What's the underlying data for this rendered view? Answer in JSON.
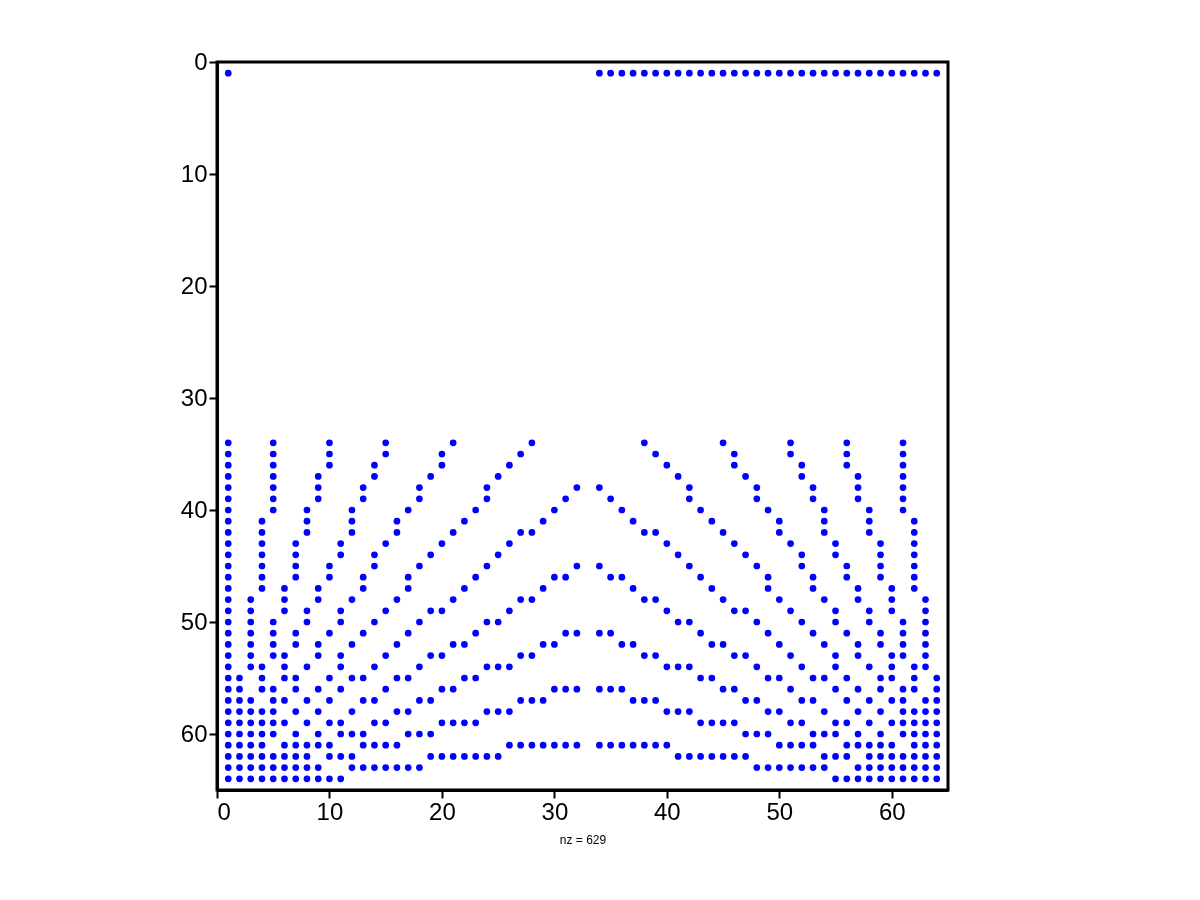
{
  "chart_data": {
    "type": "scatter",
    "xlabel": "nz = 629",
    "xlim": [
      0,
      65
    ],
    "ylim": [
      65,
      0
    ],
    "xticks": [
      0,
      10,
      20,
      30,
      40,
      50,
      60
    ],
    "yticks": [
      0,
      10,
      20,
      30,
      40,
      50,
      60
    ],
    "grid": false,
    "marker": "circle",
    "series": [
      {
        "color": "#0000ff",
        "x": [
          1,
          34,
          35,
          36,
          37,
          38,
          39,
          40,
          41,
          42,
          43,
          44,
          45,
          46,
          47,
          48,
          49,
          50,
          51,
          52,
          53,
          54,
          55,
          56,
          57,
          58,
          59,
          60,
          61,
          62,
          63,
          64
        ],
        "values": [
          1,
          1,
          1,
          1,
          1,
          1,
          1,
          1,
          1,
          1,
          1,
          1,
          1,
          1,
          1,
          1,
          1,
          1,
          1,
          1,
          1,
          1,
          1,
          1,
          1,
          1,
          1,
          1,
          1,
          1,
          1,
          1
        ]
      },
      {
        "color": "#0000ff",
        "x": [
          1,
          5,
          10,
          15,
          21,
          28,
          38,
          45,
          51,
          56,
          61
        ],
        "values": [
          34,
          34,
          34,
          34,
          34,
          34,
          34,
          34,
          34,
          34,
          34
        ]
      },
      {
        "color": "#0000ff",
        "x": [
          1,
          5,
          10,
          15,
          20,
          27,
          39,
          46,
          51,
          56,
          61
        ],
        "values": [
          35,
          35,
          35,
          35,
          35,
          35,
          35,
          35,
          35,
          35,
          35
        ]
      },
      {
        "color": "#0000ff",
        "x": [
          1,
          5,
          10,
          14,
          20,
          26,
          40,
          46,
          52,
          56,
          61
        ],
        "values": [
          36,
          36,
          36,
          36,
          36,
          36,
          36,
          36,
          36,
          36,
          36
        ]
      },
      {
        "color": "#0000ff",
        "x": [
          1,
          5,
          9,
          14,
          19,
          25,
          41,
          47,
          52,
          57,
          61
        ],
        "values": [
          37,
          37,
          37,
          37,
          37,
          37,
          37,
          37,
          37,
          37,
          37
        ]
      },
      {
        "color": "#0000ff",
        "x": [
          1,
          5,
          9,
          13,
          18,
          24,
          32,
          34,
          42,
          48,
          53,
          57,
          61
        ],
        "values": [
          38,
          38,
          38,
          38,
          38,
          38,
          38,
          38,
          38,
          38,
          38,
          38,
          38
        ]
      },
      {
        "color": "#0000ff",
        "x": [
          1,
          5,
          9,
          13,
          18,
          24,
          31,
          35,
          42,
          48,
          53,
          57,
          61
        ],
        "values": [
          39,
          39,
          39,
          39,
          39,
          39,
          39,
          39,
          39,
          39,
          39,
          39,
          39
        ]
      },
      {
        "color": "#0000ff",
        "x": [
          1,
          5,
          8,
          12,
          17,
          23,
          30,
          36,
          43,
          49,
          54,
          58,
          61
        ],
        "values": [
          40,
          40,
          40,
          40,
          40,
          40,
          40,
          40,
          40,
          40,
          40,
          40,
          40
        ]
      },
      {
        "color": "#0000ff",
        "x": [
          1,
          4,
          8,
          12,
          16,
          22,
          29,
          37,
          44,
          50,
          54,
          58,
          62
        ],
        "values": [
          41,
          41,
          41,
          41,
          41,
          41,
          41,
          41,
          41,
          41,
          41,
          41,
          41
        ]
      },
      {
        "color": "#0000ff",
        "x": [
          1,
          4,
          8,
          12,
          16,
          21,
          27,
          28,
          38,
          39,
          45,
          50,
          54,
          58,
          62
        ],
        "values": [
          42,
          42,
          42,
          42,
          42,
          42,
          42,
          42,
          42,
          42,
          42,
          42,
          42,
          42,
          42
        ]
      },
      {
        "color": "#0000ff",
        "x": [
          1,
          4,
          7,
          11,
          15,
          20,
          26,
          40,
          46,
          51,
          55,
          59,
          62
        ],
        "values": [
          43,
          43,
          43,
          43,
          43,
          43,
          43,
          43,
          43,
          43,
          43,
          43,
          43
        ]
      },
      {
        "color": "#0000ff",
        "x": [
          1,
          4,
          7,
          11,
          14,
          19,
          25,
          41,
          47,
          52,
          55,
          59,
          62
        ],
        "values": [
          44,
          44,
          44,
          44,
          44,
          44,
          44,
          44,
          44,
          44,
          44,
          44,
          44
        ]
      },
      {
        "color": "#0000ff",
        "x": [
          1,
          4,
          7,
          10,
          14,
          18,
          24,
          32,
          34,
          42,
          48,
          52,
          56,
          59,
          62
        ],
        "values": [
          45,
          45,
          45,
          45,
          45,
          45,
          45,
          45,
          45,
          45,
          45,
          45,
          45,
          45,
          45
        ]
      },
      {
        "color": "#0000ff",
        "x": [
          1,
          4,
          7,
          10,
          13,
          17,
          23,
          30,
          31,
          35,
          36,
          43,
          49,
          53,
          56,
          59,
          62
        ],
        "values": [
          46,
          46,
          46,
          46,
          46,
          46,
          46,
          46,
          46,
          46,
          46,
          46,
          46,
          46,
          46,
          46,
          46
        ]
      },
      {
        "color": "#0000ff",
        "x": [
          1,
          4,
          6,
          9,
          13,
          17,
          22,
          29,
          37,
          44,
          49,
          53,
          57,
          60,
          62
        ],
        "values": [
          47,
          47,
          47,
          47,
          47,
          47,
          47,
          47,
          47,
          47,
          47,
          47,
          47,
          47,
          47
        ]
      },
      {
        "color": "#0000ff",
        "x": [
          1,
          3,
          6,
          9,
          12,
          16,
          21,
          27,
          28,
          38,
          39,
          45,
          50,
          54,
          57,
          60,
          63
        ],
        "values": [
          48,
          48,
          48,
          48,
          48,
          48,
          48,
          48,
          48,
          48,
          48,
          48,
          48,
          48,
          48,
          48,
          48
        ]
      },
      {
        "color": "#0000ff",
        "x": [
          1,
          3,
          6,
          8,
          11,
          15,
          19,
          20,
          26,
          40,
          46,
          47,
          51,
          55,
          58,
          60,
          63
        ],
        "values": [
          49,
          49,
          49,
          49,
          49,
          49,
          49,
          49,
          49,
          49,
          49,
          49,
          49,
          49,
          49,
          49,
          49
        ]
      },
      {
        "color": "#0000ff",
        "x": [
          1,
          3,
          5,
          8,
          11,
          14,
          18,
          24,
          25,
          41,
          42,
          48,
          52,
          55,
          58,
          61,
          63
        ],
        "values": [
          50,
          50,
          50,
          50,
          50,
          50,
          50,
          50,
          50,
          50,
          50,
          50,
          50,
          50,
          50,
          50,
          50
        ]
      },
      {
        "color": "#0000ff",
        "x": [
          1,
          3,
          5,
          7,
          10,
          13,
          17,
          23,
          31,
          32,
          34,
          35,
          43,
          49,
          53,
          56,
          59,
          61,
          63
        ],
        "values": [
          51,
          51,
          51,
          51,
          51,
          51,
          51,
          51,
          51,
          51,
          51,
          51,
          51,
          51,
          51,
          51,
          51,
          51,
          51
        ]
      },
      {
        "color": "#0000ff",
        "x": [
          1,
          3,
          5,
          7,
          9,
          12,
          16,
          21,
          22,
          29,
          30,
          36,
          37,
          44,
          45,
          50,
          54,
          57,
          59,
          61,
          63
        ],
        "values": [
          52,
          52,
          52,
          52,
          52,
          52,
          52,
          52,
          52,
          52,
          52,
          52,
          52,
          52,
          52,
          52,
          52,
          52,
          52,
          52,
          52
        ]
      },
      {
        "color": "#0000ff",
        "x": [
          1,
          3,
          5,
          6,
          9,
          11,
          15,
          19,
          20,
          27,
          28,
          38,
          39,
          46,
          47,
          51,
          55,
          57,
          60,
          61,
          63
        ],
        "values": [
          53,
          53,
          53,
          53,
          53,
          53,
          53,
          53,
          53,
          53,
          53,
          53,
          53,
          53,
          53,
          53,
          53,
          53,
          53,
          53,
          53
        ]
      },
      {
        "color": "#0000ff",
        "x": [
          1,
          3,
          4,
          6,
          8,
          11,
          14,
          18,
          24,
          25,
          26,
          40,
          41,
          42,
          48,
          52,
          55,
          58,
          60,
          62,
          63
        ],
        "values": [
          54,
          54,
          54,
          54,
          54,
          54,
          54,
          54,
          54,
          54,
          54,
          54,
          54,
          54,
          54,
          54,
          54,
          54,
          54,
          54,
          54
        ]
      },
      {
        "color": "#0000ff",
        "x": [
          1,
          2,
          4,
          6,
          7,
          10,
          12,
          13,
          16,
          17,
          22,
          23,
          43,
          44,
          49,
          50,
          53,
          54,
          56,
          59,
          60,
          62,
          64
        ],
        "values": [
          55,
          55,
          55,
          55,
          55,
          55,
          55,
          55,
          55,
          55,
          55,
          55,
          55,
          55,
          55,
          55,
          55,
          55,
          55,
          55,
          55,
          55,
          55
        ]
      },
      {
        "color": "#0000ff",
        "x": [
          1,
          2,
          4,
          5,
          7,
          9,
          11,
          15,
          20,
          21,
          30,
          31,
          32,
          34,
          35,
          36,
          45,
          46,
          51,
          55,
          57,
          59,
          61,
          62,
          64
        ],
        "values": [
          56,
          56,
          56,
          56,
          56,
          56,
          56,
          56,
          56,
          56,
          56,
          56,
          56,
          56,
          56,
          56,
          56,
          56,
          56,
          56,
          56,
          56,
          56,
          56,
          56
        ]
      },
      {
        "color": "#0000ff",
        "x": [
          1,
          2,
          3,
          5,
          6,
          8,
          10,
          13,
          14,
          18,
          19,
          27,
          28,
          29,
          37,
          38,
          39,
          47,
          48,
          52,
          53,
          56,
          58,
          60,
          61,
          63,
          64
        ],
        "values": [
          57,
          57,
          57,
          57,
          57,
          57,
          57,
          57,
          57,
          57,
          57,
          57,
          57,
          57,
          57,
          57,
          57,
          57,
          57,
          57,
          57,
          57,
          57,
          57,
          57,
          57,
          57
        ]
      },
      {
        "color": "#0000ff",
        "x": [
          1,
          2,
          3,
          4,
          5,
          7,
          9,
          12,
          16,
          17,
          24,
          25,
          26,
          40,
          41,
          42,
          49,
          50,
          54,
          57,
          59,
          61,
          62,
          63,
          64
        ],
        "values": [
          58,
          58,
          58,
          58,
          58,
          58,
          58,
          58,
          58,
          58,
          58,
          58,
          58,
          58,
          58,
          58,
          58,
          58,
          58,
          58,
          58,
          58,
          58,
          58,
          58
        ]
      },
      {
        "color": "#0000ff",
        "x": [
          1,
          2,
          3,
          4,
          5,
          6,
          8,
          10,
          11,
          14,
          15,
          20,
          21,
          22,
          23,
          43,
          44,
          45,
          46,
          51,
          52,
          55,
          56,
          58,
          60,
          61,
          62,
          63,
          64
        ],
        "values": [
          59,
          59,
          59,
          59,
          59,
          59,
          59,
          59,
          59,
          59,
          59,
          59,
          59,
          59,
          59,
          59,
          59,
          59,
          59,
          59,
          59,
          59,
          59,
          59,
          59,
          59,
          59,
          59,
          59
        ]
      },
      {
        "color": "#0000ff",
        "x": [
          1,
          2,
          3,
          4,
          5,
          7,
          9,
          11,
          12,
          13,
          17,
          18,
          19,
          47,
          48,
          49,
          53,
          54,
          55,
          57,
          59,
          61,
          62,
          63,
          64
        ],
        "values": [
          60,
          60,
          60,
          60,
          60,
          60,
          60,
          60,
          60,
          60,
          60,
          60,
          60,
          60,
          60,
          60,
          60,
          60,
          60,
          60,
          60,
          60,
          60,
          60,
          60
        ]
      },
      {
        "color": "#0000ff",
        "x": [
          1,
          2,
          3,
          4,
          6,
          7,
          8,
          9,
          10,
          13,
          14,
          15,
          16,
          26,
          27,
          28,
          29,
          30,
          31,
          32,
          34,
          35,
          36,
          37,
          38,
          39,
          40,
          50,
          51,
          52,
          53,
          56,
          57,
          58,
          59,
          60,
          62,
          63,
          64
        ],
        "values": [
          61,
          61,
          61,
          61,
          61,
          61,
          61,
          61,
          61,
          61,
          61,
          61,
          61,
          61,
          61,
          61,
          61,
          61,
          61,
          61,
          61,
          61,
          61,
          61,
          61,
          61,
          61,
          61,
          61,
          61,
          61,
          61,
          61,
          61,
          61,
          61,
          61,
          61,
          61
        ]
      },
      {
        "color": "#0000ff",
        "x": [
          1,
          2,
          3,
          4,
          5,
          6,
          7,
          8,
          10,
          11,
          12,
          19,
          20,
          21,
          22,
          23,
          24,
          25,
          41,
          42,
          43,
          44,
          45,
          46,
          47,
          54,
          55,
          56,
          58,
          59,
          60,
          61,
          62,
          63,
          64
        ],
        "values": [
          62,
          62,
          62,
          62,
          62,
          62,
          62,
          62,
          62,
          62,
          62,
          62,
          62,
          62,
          62,
          62,
          62,
          62,
          62,
          62,
          62,
          62,
          62,
          62,
          62,
          62,
          62,
          62,
          62,
          62,
          62,
          62,
          62,
          62,
          62
        ]
      },
      {
        "color": "#0000ff",
        "x": [
          1,
          2,
          3,
          4,
          5,
          6,
          7,
          8,
          9,
          12,
          13,
          14,
          15,
          16,
          17,
          18,
          48,
          49,
          50,
          51,
          52,
          53,
          54,
          57,
          58,
          59,
          60,
          61,
          62,
          63,
          64
        ],
        "values": [
          63,
          63,
          63,
          63,
          63,
          63,
          63,
          63,
          63,
          63,
          63,
          63,
          63,
          63,
          63,
          63,
          63,
          63,
          63,
          63,
          63,
          63,
          63,
          63,
          63,
          63,
          63,
          63,
          63,
          63,
          63
        ]
      },
      {
        "color": "#0000ff",
        "x": [
          1,
          2,
          3,
          4,
          5,
          6,
          7,
          8,
          9,
          10,
          11,
          55,
          56,
          57,
          58,
          59,
          60,
          61,
          62,
          63,
          64
        ],
        "values": [
          64,
          64,
          64,
          64,
          64,
          64,
          64,
          64,
          64,
          64,
          64,
          64,
          64,
          64,
          64,
          64,
          64,
          64,
          64,
          64,
          64
        ]
      }
    ]
  }
}
